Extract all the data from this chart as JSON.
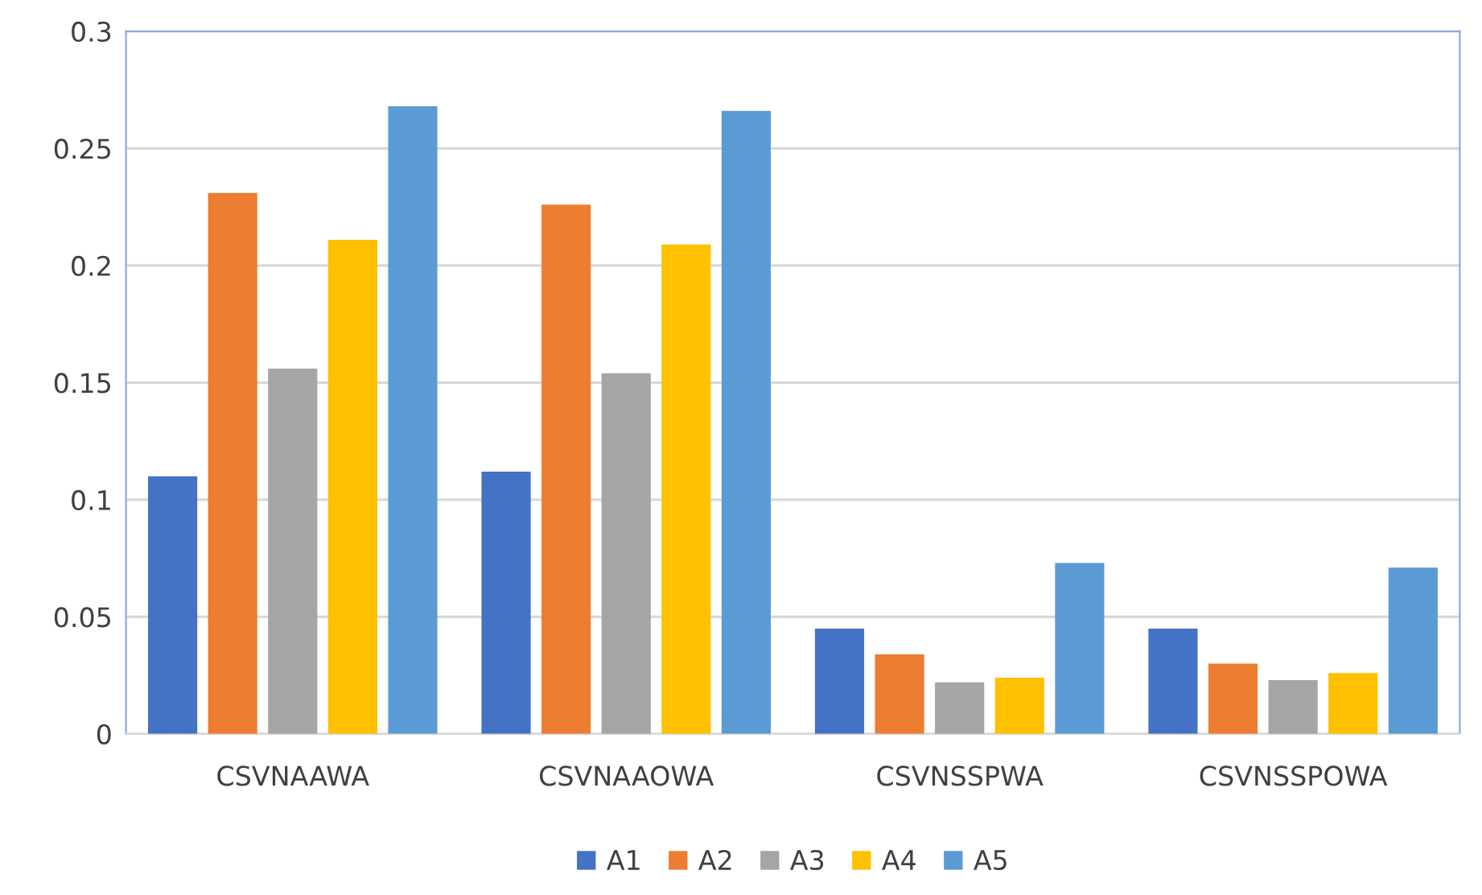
{
  "chart_data": {
    "type": "bar",
    "categories": [
      "CSVNAAWA",
      "CSVNAAOWA",
      "CSVNSSPWA",
      "CSVNSSPOWA"
    ],
    "series": [
      {
        "name": "A1",
        "color": "#4472c4",
        "values": [
          0.11,
          0.112,
          0.045,
          0.045
        ]
      },
      {
        "name": "A2",
        "color": "#ed7d31",
        "values": [
          0.231,
          0.226,
          0.034,
          0.03
        ]
      },
      {
        "name": "A3",
        "color": "#a5a5a5",
        "values": [
          0.156,
          0.154,
          0.022,
          0.023
        ]
      },
      {
        "name": "A4",
        "color": "#ffc000",
        "values": [
          0.211,
          0.209,
          0.024,
          0.026
        ]
      },
      {
        "name": "A5",
        "color": "#5b9bd5",
        "values": [
          0.268,
          0.266,
          0.073,
          0.071
        ]
      }
    ],
    "ylim": [
      0,
      0.3
    ],
    "yticks": [
      0,
      0.05,
      0.1,
      0.15,
      0.2,
      0.25,
      0.3
    ],
    "grid": "y",
    "legend": "bottom"
  }
}
